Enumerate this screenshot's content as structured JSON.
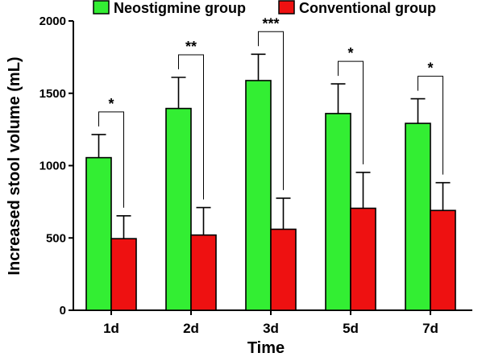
{
  "chart_data": {
    "type": "bar",
    "xlabel": "Time",
    "ylabel": "Increased stool volume (mL)",
    "ylim": [
      0,
      2000
    ],
    "yticks": [
      0,
      500,
      1000,
      1500,
      2000
    ],
    "categories": [
      "1d",
      "2d",
      "3d",
      "5d",
      "7d"
    ],
    "series": [
      {
        "name": "Neostigmine group",
        "color": "#33ee33",
        "values": [
          1055,
          1395,
          1588,
          1360,
          1292
        ],
        "errors": [
          160,
          215,
          182,
          205,
          170
        ]
      },
      {
        "name": "Conventional group",
        "color": "#ee1111",
        "values": [
          495,
          520,
          560,
          705,
          690
        ],
        "errors": [
          158,
          190,
          215,
          248,
          192
        ]
      }
    ],
    "significance": [
      "*",
      "**",
      "***",
      "*",
      "*"
    ],
    "legend_position": "top",
    "grid": false
  }
}
